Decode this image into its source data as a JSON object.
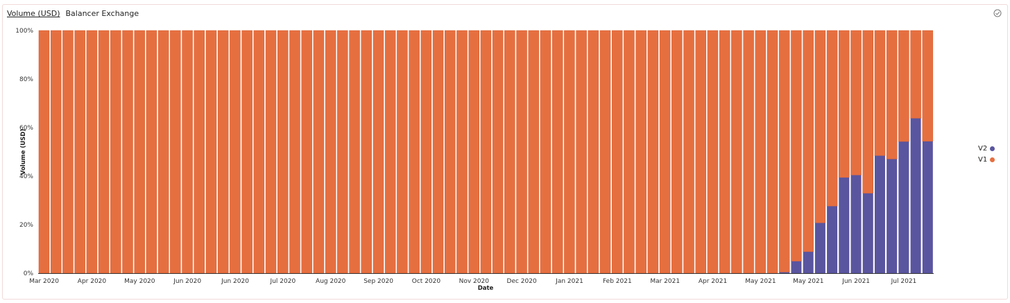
{
  "header": {
    "metric": "Volume (USD)",
    "source": "Balancer Exchange",
    "icon": "check-circle-icon"
  },
  "chart_data": {
    "type": "bar",
    "stacked": true,
    "normalized": true,
    "xlabel": "Date",
    "ylabel": "Volume (USD)",
    "ylim": [
      0,
      100
    ],
    "yticks": [
      "0%",
      "20%",
      "40%",
      "60%",
      "80%",
      "100%"
    ],
    "xtick_labels": [
      "Mar 2020",
      "Apr 2020",
      "May 2020",
      "Jun 2020",
      "Jun 2020",
      "Jul 2020",
      "Aug 2020",
      "Sep 2020",
      "Oct 2020",
      "Nov 2020",
      "Dec 2020",
      "Jan 2021",
      "Feb 2021",
      "Mar 2021",
      "Apr 2021",
      "May 2021",
      "May 2021",
      "Jun 2021",
      "Jul 2021"
    ],
    "xtick_bar_index": [
      0,
      4,
      8,
      12,
      16,
      20,
      24,
      28,
      32,
      36,
      40,
      44,
      48,
      52,
      56,
      60,
      64,
      68,
      72
    ],
    "num_bars": 75,
    "v2_last_values_pct": [
      0.4,
      4.9,
      8.8,
      20.7,
      27.6,
      39.4,
      40.4,
      32.9,
      48.4,
      47.0,
      54.2,
      63.8,
      54.3
    ],
    "series": [
      {
        "name": "V2",
        "color": "#5a559f"
      },
      {
        "name": "V1",
        "color": "#e66f40"
      }
    ],
    "legend": "right"
  }
}
